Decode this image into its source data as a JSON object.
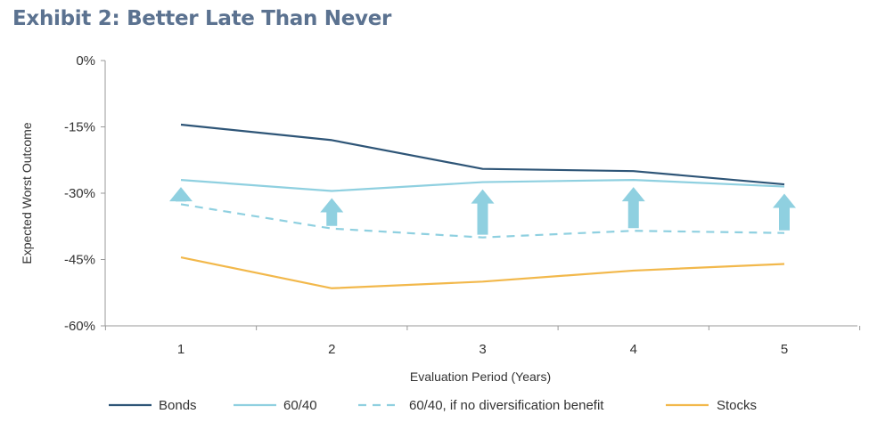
{
  "chart_data": {
    "type": "line",
    "title": "Exhibit 2: Better Late Than Never",
    "xlabel": "Evaluation Period (Years)",
    "ylabel": "Expected Worst Outcome",
    "categories": [
      "1",
      "2",
      "3",
      "4",
      "5"
    ],
    "ylim": [
      -60,
      0
    ],
    "yticks": [
      0,
      -15,
      -30,
      -45,
      -60
    ],
    "ytick_labels": [
      "0%",
      "-15%",
      "-30%",
      "-45%",
      "-60%"
    ],
    "grid": false,
    "legend_position": "bottom",
    "series": [
      {
        "name": "Bonds",
        "values": [
          -14.5,
          -18,
          -24.5,
          -25,
          -28
        ],
        "color": "#2e5577",
        "style": "solid"
      },
      {
        "name": "60/40",
        "values": [
          -27,
          -29.5,
          -27.5,
          -27,
          -28.5
        ],
        "color": "#8fd0e0",
        "style": "solid"
      },
      {
        "name": "60/40, if no diversification benefit",
        "values": [
          -32.5,
          -38,
          -40,
          -38.5,
          -39
        ],
        "color": "#8fd0e0",
        "style": "dashed"
      },
      {
        "name": "Stocks",
        "values": [
          -44.5,
          -51.5,
          -50,
          -47.5,
          -46
        ],
        "color": "#f2b84b",
        "style": "solid"
      }
    ],
    "annotations": {
      "arrows": "upward arrows from 60/40 if no diversification benefit to 60/40 at each period",
      "arrow_color": "#8fd0e0"
    }
  }
}
